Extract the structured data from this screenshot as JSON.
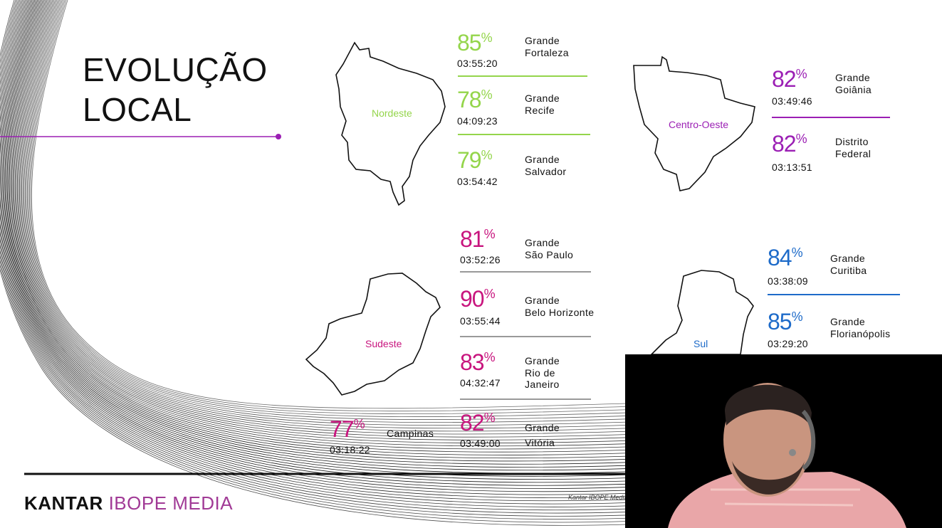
{
  "slide": {
    "title_line1": "EVOLUÇÃO",
    "title_line2": "LOCAL",
    "logo_primary": "KANTAR",
    "logo_secondary": "IBOPE MEDIA",
    "footnote": "Kantar IBOPE Media"
  },
  "regions": {
    "nordeste": {
      "label": "Nordeste",
      "color": "#94d54b",
      "cities": [
        {
          "pct": "85",
          "time": "03:55:20",
          "line1": "Grande",
          "line2": "Fortaleza"
        },
        {
          "pct": "78",
          "time": "04:09:23",
          "line1": "Grande",
          "line2": "Recife"
        },
        {
          "pct": "79",
          "time": "03:54:42",
          "line1": "Grande",
          "line2": "Salvador"
        }
      ]
    },
    "centro_oeste": {
      "label": "Centro-Oeste",
      "color": "#9b1fb4",
      "cities": [
        {
          "pct": "82",
          "time": "03:49:46",
          "line1": "Grande",
          "line2": "Goiânia"
        },
        {
          "pct": "82",
          "time": "03:13:51",
          "line1": "Distrito",
          "line2": "Federal"
        }
      ]
    },
    "sudeste": {
      "label": "Sudeste",
      "color": "#c8157e",
      "cities": [
        {
          "pct": "81",
          "time": "03:52:26",
          "line1": "Grande",
          "line2": "São Paulo"
        },
        {
          "pct": "90",
          "time": "03:55:44",
          "line1": "Grande",
          "line2": "Belo Horizonte"
        },
        {
          "pct": "83",
          "time": "04:32:47",
          "line1": "Grande",
          "line2": "Rio de",
          "line3": "Janeiro"
        },
        {
          "pct": "82",
          "time": "03:49:00",
          "line1": "Grande",
          "line2": "Vitória"
        },
        {
          "pct": "77",
          "time": "03:18:22",
          "line1": "Campinas"
        }
      ]
    },
    "sul": {
      "label": "Sul",
      "color": "#1e6bc9",
      "cities": [
        {
          "pct": "84",
          "time": "03:38:09",
          "line1": "Grande",
          "line2": "Curitiba"
        },
        {
          "pct": "85",
          "time": "03:29:20",
          "line1": "Grande",
          "line2": "Florianópolis"
        }
      ]
    }
  },
  "pct_symbol": "%"
}
